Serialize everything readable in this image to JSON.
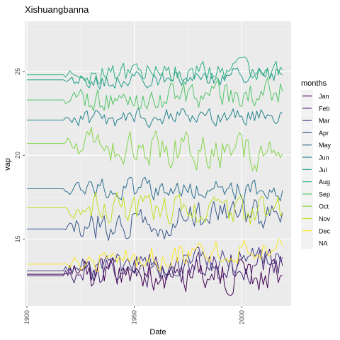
{
  "chart_data": {
    "type": "line",
    "title": "Xishuangbanna",
    "xlabel": "Date",
    "ylabel": "vap",
    "xlim": [
      1899,
      2023
    ],
    "ylim": [
      11,
      28
    ],
    "x_ticks": [
      1900,
      1950,
      2000
    ],
    "y_ticks": [
      15,
      20,
      25
    ],
    "grid": true,
    "legend_title": "months",
    "legend_position": "right",
    "legend": [
      {
        "label": "Jan",
        "color": "#440154"
      },
      {
        "label": "Feb",
        "color": "#482173"
      },
      {
        "label": "Mar",
        "color": "#433E85"
      },
      {
        "label": "Apr",
        "color": "#38598C"
      },
      {
        "label": "May",
        "color": "#2D708E"
      },
      {
        "label": "Jun",
        "color": "#25858E"
      },
      {
        "label": "Jul",
        "color": "#1E9B8A"
      },
      {
        "label": "Aug",
        "color": "#2BB07F"
      },
      {
        "label": "Sep",
        "color": "#51C56A"
      },
      {
        "label": "Oct",
        "color": "#85D54A"
      },
      {
        "label": "Nov",
        "color": "#C2DF23"
      },
      {
        "label": "Dec",
        "color": "#FDE725"
      },
      {
        "label": "NA",
        "color": "#7F7F7F"
      }
    ],
    "series": [
      {
        "month": "Jan",
        "color": "#440154",
        "start_value": 12.9,
        "end_value": 12.8,
        "flat_until": 1917
      },
      {
        "month": "Feb",
        "color": "#482173",
        "start_value": 12.8,
        "end_value": 13.4,
        "flat_until": 1917
      },
      {
        "month": "Mar",
        "color": "#433E85",
        "start_value": 13.1,
        "end_value": 13.9,
        "flat_until": 1917
      },
      {
        "month": "Apr",
        "color": "#38598C",
        "start_value": 15.6,
        "end_value": 16.6,
        "flat_until": 1917
      },
      {
        "month": "May",
        "color": "#2D708E",
        "start_value": 18.0,
        "end_value": 17.9,
        "flat_until": 1917
      },
      {
        "month": "Jun",
        "color": "#25858E",
        "start_value": 22.1,
        "end_value": 22.5,
        "flat_until": 1917
      },
      {
        "month": "Jul",
        "color": "#1E9B8A",
        "start_value": 24.5,
        "end_value": 24.8,
        "flat_until": 1917
      },
      {
        "month": "Aug",
        "color": "#2BB07F",
        "start_value": 24.8,
        "end_value": 25.1,
        "flat_until": 1917
      },
      {
        "month": "Sep",
        "color": "#51C56A",
        "start_value": 23.3,
        "end_value": 23.8,
        "flat_until": 1917
      },
      {
        "month": "Oct",
        "color": "#85D54A",
        "start_value": 20.7,
        "end_value": 20.1,
        "flat_until": 1917
      },
      {
        "month": "Nov",
        "color": "#C2DF23",
        "start_value": 16.9,
        "end_value": 16.6,
        "flat_until": 1917
      },
      {
        "month": "Dec",
        "color": "#FDE725",
        "start_value": 13.5,
        "end_value": 14.6,
        "flat_until": 1917
      }
    ]
  }
}
